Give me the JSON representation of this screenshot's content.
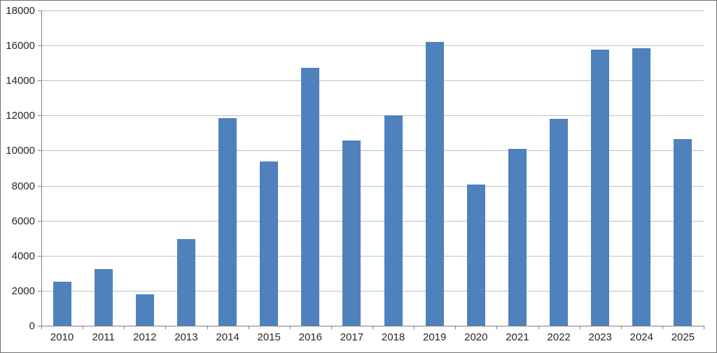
{
  "chart_data": {
    "type": "bar",
    "title": "",
    "xlabel": "",
    "ylabel": "",
    "categories": [
      "2010",
      "2011",
      "2012",
      "2013",
      "2014",
      "2015",
      "2016",
      "2017",
      "2018",
      "2019",
      "2020",
      "2021",
      "2022",
      "2023",
      "2024",
      "2025"
    ],
    "values": [
      2500,
      3230,
      1800,
      4950,
      11850,
      9380,
      14720,
      10580,
      12000,
      16200,
      8080,
      10110,
      11800,
      15760,
      15860,
      10650
    ],
    "ylim": [
      0,
      18000
    ],
    "ytick_step": 2000,
    "ytick_labels": [
      "0",
      "2000",
      "4000",
      "6000",
      "8000",
      "10000",
      "12000",
      "14000",
      "16000",
      "18000"
    ],
    "grid": true,
    "legend": false,
    "colors": {
      "bar_fill": "#4F81BD",
      "gridline": "#C0C0C0",
      "axis": "#808080",
      "tick": "#808080",
      "label_text": "#262626",
      "background": "#FFFFFF",
      "outer_border": "#707070"
    }
  }
}
